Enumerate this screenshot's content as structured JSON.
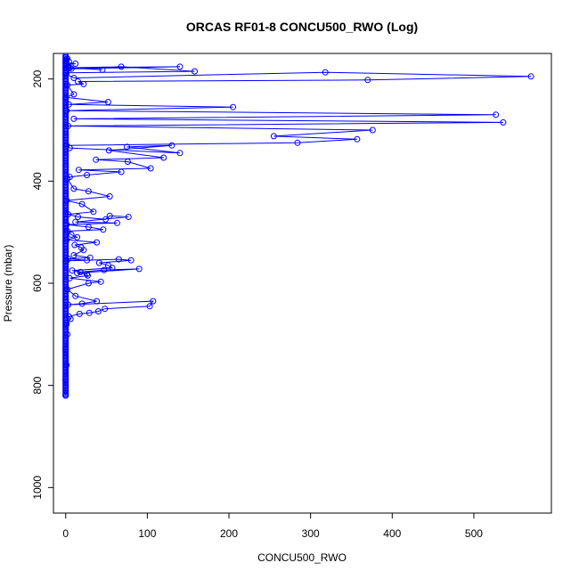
{
  "chart_data": {
    "type": "line",
    "title": "ORCAS RF01-8 CONCU500_RWO (Log)",
    "xlabel": "CONCU500_RWO",
    "ylabel": "Pressure (mbar)",
    "xlim": [
      -15,
      595
    ],
    "ylim": [
      1050,
      150
    ],
    "y_reversed": true,
    "x_ticks": [
      0,
      100,
      200,
      300,
      400,
      500
    ],
    "y_ticks": [
      200,
      400,
      600,
      800,
      1000
    ],
    "grid": false,
    "legend": "none",
    "colors": {
      "series": "#0000ff",
      "axis": "#000000",
      "background": "#ffffff"
    },
    "series": [
      {
        "x": [
          0,
          2,
          1,
          4,
          0,
          12,
          1,
          3,
          0,
          7,
          140,
          5,
          45,
          3,
          68,
          158,
          1,
          0,
          10,
          318,
          570,
          370,
          15,
          22,
          2,
          10,
          0,
          52,
          4,
          205,
          1,
          527,
          10,
          536,
          3,
          376,
          255,
          357,
          284,
          1,
          5,
          140,
          75,
          130,
          53,
          120,
          37,
          76,
          104,
          16,
          68,
          26,
          5,
          2,
          10,
          28,
          54,
          1,
          20,
          34,
          3,
          15,
          49,
          54,
          77,
          12,
          63,
          1,
          28,
          46,
          2,
          7,
          14,
          1,
          38,
          11,
          19,
          22,
          10,
          30,
          3,
          26,
          1,
          65,
          80,
          41,
          52,
          57,
          8,
          18,
          47,
          90,
          14,
          26,
          27,
          5,
          43,
          28,
          2,
          12,
          38,
          20,
          3,
          107,
          103,
          48,
          40,
          29,
          17,
          4,
          6,
          1,
          2,
          0,
          1,
          0,
          0
        ],
        "y": [
          155,
          160,
          162,
          166,
          168,
          170,
          172,
          175,
          178,
          180,
          176,
          178,
          182,
          178,
          176,
          185,
          188,
          190,
          198,
          187,
          195,
          202,
          205,
          210,
          212,
          230,
          236,
          245,
          250,
          255,
          262,
          270,
          278,
          285,
          292,
          300,
          312,
          318,
          325,
          330,
          335,
          345,
          333,
          330,
          340,
          354,
          358,
          362,
          375,
          378,
          382,
          388,
          392,
          395,
          415,
          420,
          430,
          438,
          445,
          460,
          465,
          470,
          475,
          468,
          470,
          480,
          482,
          485,
          490,
          495,
          498,
          505,
          510,
          515,
          520,
          525,
          530,
          535,
          545,
          550,
          552,
          555,
          556,
          553,
          555,
          560,
          565,
          570,
          575,
          578,
          574,
          572,
          580,
          582,
          585,
          590,
          597,
          600,
          612,
          625,
          635,
          640,
          642,
          635,
          645,
          650,
          655,
          658,
          660,
          665,
          670,
          680,
          700,
          730,
          760,
          790,
          820
        ]
      }
    ]
  }
}
